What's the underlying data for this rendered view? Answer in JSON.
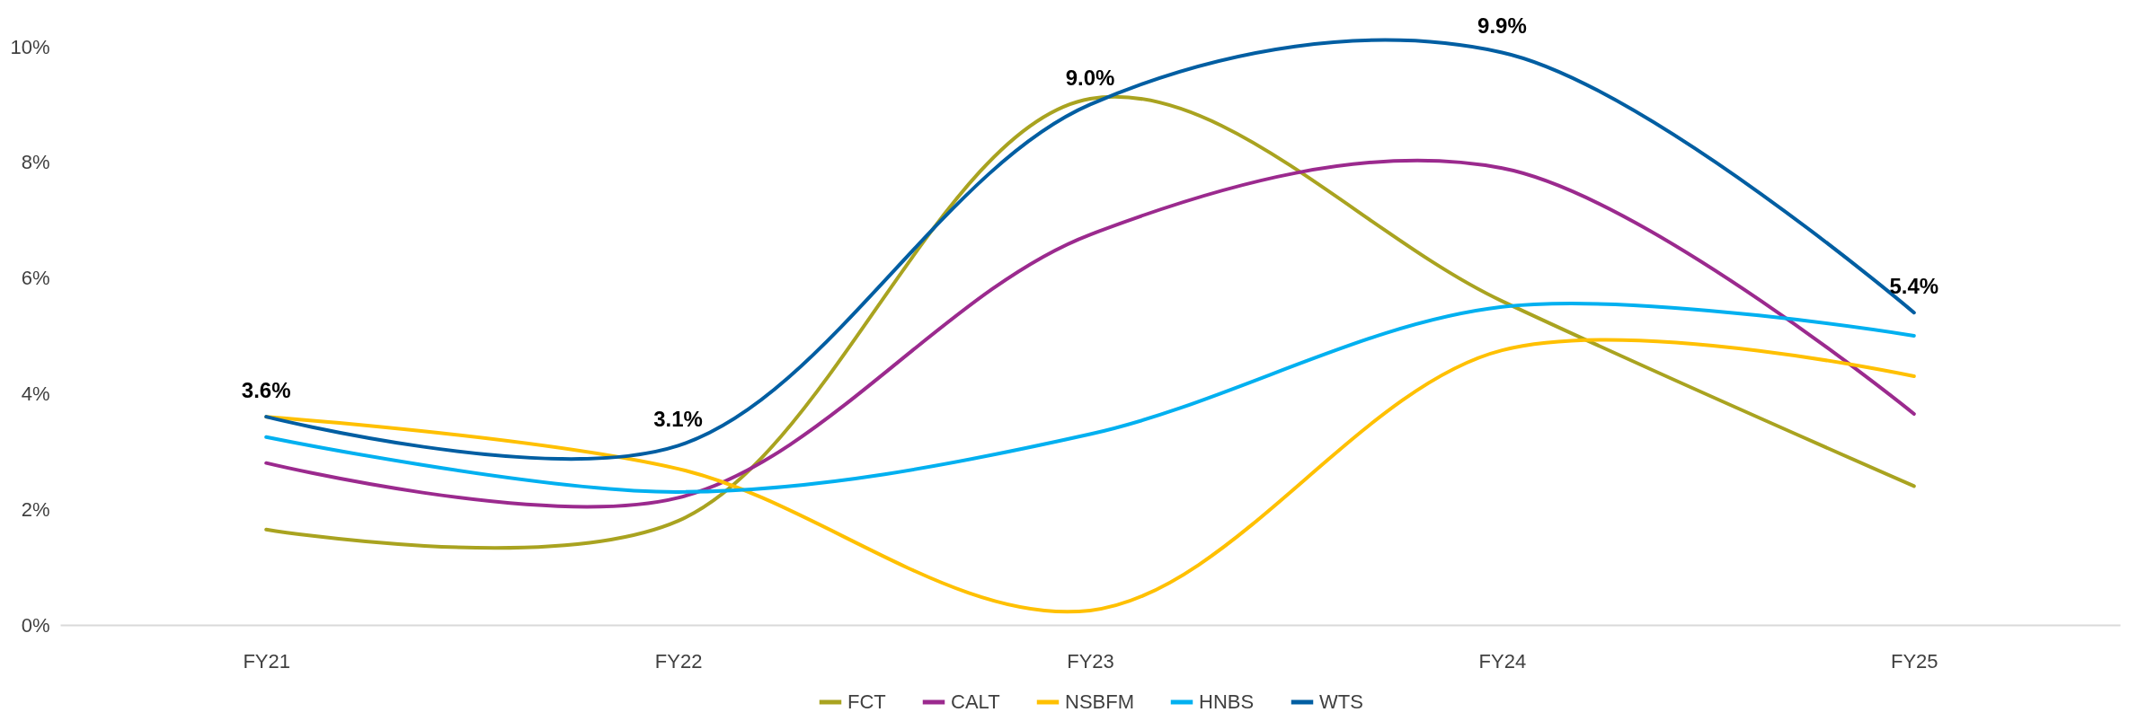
{
  "chart_data": {
    "type": "line",
    "categories": [
      "FY21",
      "FY22",
      "FY23",
      "FY24",
      "FY25"
    ],
    "series": [
      {
        "name": "FCT",
        "color": "#a9a320",
        "values": [
          1.65,
          1.8,
          9.1,
          5.6,
          2.4
        ]
      },
      {
        "name": "CALT",
        "color": "#9b2a8e",
        "values": [
          2.8,
          2.2,
          6.75,
          7.9,
          3.65
        ]
      },
      {
        "name": "NSBFM",
        "color": "#ffc000",
        "values": [
          3.6,
          2.7,
          0.25,
          4.75,
          4.3
        ]
      },
      {
        "name": "HNBS",
        "color": "#00b0f0",
        "values": [
          3.25,
          2.3,
          3.3,
          5.5,
          5.0
        ]
      },
      {
        "name": "WTS",
        "color": "#005ea2",
        "values": [
          3.6,
          3.1,
          9.0,
          9.9,
          5.4
        ],
        "value_labels": [
          "3.6%",
          "3.1%",
          "9.0%",
          "9.9%",
          "5.4%"
        ]
      }
    ],
    "ylim": [
      0,
      10
    ],
    "yticks": [
      {
        "value": 0,
        "label": "0%"
      },
      {
        "value": 2,
        "label": "2%"
      },
      {
        "value": 4,
        "label": "4%"
      },
      {
        "value": 6,
        "label": "6%"
      },
      {
        "value": 8,
        "label": "8%"
      },
      {
        "value": 10,
        "label": "10%"
      }
    ],
    "grid": false,
    "legend": "bottom",
    "marker": "none",
    "line_style": "solid"
  }
}
